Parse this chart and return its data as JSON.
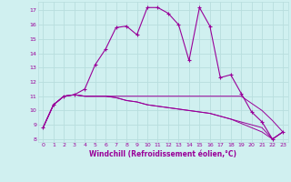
{
  "xlabel": "Windchill (Refroidissement éolien,°C)",
  "background_color": "#d0f0f0",
  "grid_color": "#b8dede",
  "line_color": "#990099",
  "xlim": [
    -0.5,
    23.5
  ],
  "ylim": [
    7.8,
    17.6
  ],
  "yticks": [
    8,
    9,
    10,
    11,
    12,
    13,
    14,
    15,
    16,
    17
  ],
  "xticks": [
    0,
    1,
    2,
    3,
    4,
    5,
    6,
    7,
    8,
    9,
    10,
    11,
    12,
    13,
    14,
    15,
    16,
    17,
    18,
    19,
    20,
    21,
    22,
    23
  ],
  "series": [
    [
      8.8,
      10.4,
      11.0,
      11.1,
      11.5,
      13.2,
      14.3,
      15.8,
      15.9,
      15.3,
      17.2,
      17.2,
      16.8,
      16.0,
      13.5,
      17.2,
      15.9,
      12.3,
      12.5,
      11.2,
      9.9,
      9.2,
      8.0,
      8.5
    ],
    [
      8.8,
      10.4,
      11.0,
      11.1,
      11.0,
      11.0,
      11.0,
      11.0,
      11.0,
      11.0,
      11.0,
      11.0,
      11.0,
      11.0,
      11.0,
      11.0,
      11.0,
      11.0,
      11.0,
      11.0,
      10.5,
      10.0,
      9.3,
      8.5
    ],
    [
      8.8,
      10.4,
      11.0,
      11.1,
      11.0,
      11.0,
      11.0,
      10.9,
      10.7,
      10.6,
      10.4,
      10.3,
      10.2,
      10.1,
      10.0,
      9.9,
      9.8,
      9.6,
      9.4,
      9.2,
      9.0,
      8.8,
      8.0,
      8.5
    ],
    [
      8.8,
      10.4,
      11.0,
      11.1,
      11.0,
      11.0,
      11.0,
      10.9,
      10.7,
      10.6,
      10.4,
      10.3,
      10.2,
      10.1,
      10.0,
      9.9,
      9.8,
      9.6,
      9.4,
      9.1,
      8.8,
      8.5,
      8.0,
      8.5
    ]
  ]
}
